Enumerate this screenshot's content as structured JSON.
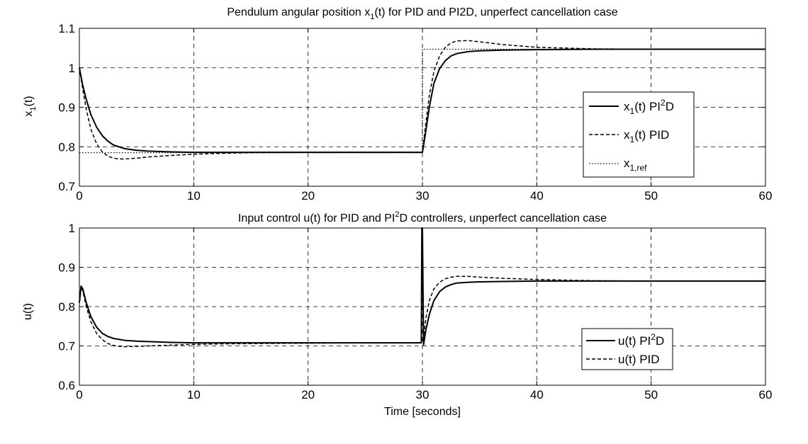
{
  "chart_data": [
    {
      "type": "line",
      "title": "Pendulum angular position x_1(t) for PID and PI2D, unperfect cancellation case",
      "title_parts": {
        "pre": "Pendulum angular position x",
        "sub": "1",
        "post": "(t) for PID and PI2D, unperfect cancellation case"
      },
      "xlabel": "",
      "ylabel": "x_1(t)",
      "ylabel_parts": {
        "pre": "x",
        "sub": "1",
        "post": "(t)"
      },
      "xlim": [
        0,
        60
      ],
      "ylim": [
        0.7,
        1.1
      ],
      "xticks": [
        0,
        10,
        20,
        30,
        40,
        50,
        60
      ],
      "yticks": [
        0.7,
        0.8,
        0.9,
        1.0,
        1.1
      ],
      "ytick_labels": [
        "0.7",
        "0.8",
        "0.9",
        "1",
        "1.1"
      ],
      "grid": true,
      "legend_position": "right",
      "series": [
        {
          "name": "x_1(t) PI^2D",
          "legend_parts": {
            "pre": "x",
            "sub": "1",
            "mid": "(t) PI",
            "sup": "2",
            "post": "D"
          },
          "style": "solid",
          "x": [
            0,
            0.3,
            0.6,
            1,
            1.5,
            2,
            2.5,
            3,
            4,
            5,
            6,
            8,
            10,
            15,
            20,
            25,
            29.9,
            30,
            30.3,
            30.6,
            31,
            31.5,
            32,
            32.5,
            33,
            34,
            35,
            37,
            40,
            45,
            50,
            55,
            60
          ],
          "y": [
            1.0,
            0.955,
            0.92,
            0.882,
            0.85,
            0.828,
            0.814,
            0.804,
            0.795,
            0.791,
            0.789,
            0.787,
            0.786,
            0.786,
            0.786,
            0.786,
            0.786,
            0.786,
            0.84,
            0.9,
            0.96,
            0.998,
            1.018,
            1.03,
            1.036,
            1.041,
            1.043,
            1.045,
            1.046,
            1.047,
            1.047,
            1.047,
            1.047
          ]
        },
        {
          "name": "x_1(t) PID",
          "legend_parts": {
            "pre": "x",
            "sub": "1",
            "mid": "(t) PID",
            "sup": "",
            "post": ""
          },
          "style": "dashed",
          "x": [
            0,
            0.3,
            0.6,
            1,
            1.5,
            2,
            2.5,
            3,
            3.5,
            4,
            5,
            6,
            8,
            10,
            12,
            15,
            20,
            25,
            29.9,
            30,
            30.3,
            30.6,
            31,
            31.5,
            32,
            32.5,
            33,
            34,
            35,
            37,
            40,
            45,
            50,
            55,
            60
          ],
          "y": [
            1.0,
            0.945,
            0.895,
            0.845,
            0.808,
            0.787,
            0.776,
            0.771,
            0.769,
            0.769,
            0.771,
            0.774,
            0.778,
            0.781,
            0.783,
            0.785,
            0.786,
            0.786,
            0.786,
            0.786,
            0.86,
            0.93,
            0.99,
            1.03,
            1.052,
            1.063,
            1.068,
            1.069,
            1.066,
            1.059,
            1.052,
            1.048,
            1.047,
            1.047,
            1.047
          ]
        },
        {
          "name": "x_1,ref",
          "legend_parts": {
            "pre": "x",
            "sub": "1,ref",
            "mid": "",
            "sup": "",
            "post": ""
          },
          "style": "dotted",
          "x": [
            0,
            29.99,
            30,
            60
          ],
          "y": [
            0.785,
            0.785,
            1.047,
            1.047
          ]
        }
      ]
    },
    {
      "type": "line",
      "title": "Input control u(t) for PID and PI^2D controllers, unperfect cancellation case",
      "title_parts": {
        "pre": "Input control u(t) for PID and PI",
        "sup": "2",
        "post": "D controllers, unperfect cancellation case"
      },
      "xlabel": "Time [seconds]",
      "ylabel": "u(t)",
      "xlim": [
        0,
        60
      ],
      "ylim": [
        0.6,
        1.0
      ],
      "xticks": [
        0,
        10,
        20,
        30,
        40,
        50,
        60
      ],
      "yticks": [
        0.6,
        0.7,
        0.8,
        0.9,
        1.0
      ],
      "ytick_labels": [
        "0.6",
        "0.7",
        "0.8",
        "0.9",
        "1"
      ],
      "grid": true,
      "legend_position": "right",
      "series": [
        {
          "name": "u(t) PI^2D",
          "legend_parts": {
            "pre": "u(t) PI",
            "sup": "2",
            "post": "D"
          },
          "style": "solid",
          "x": [
            0,
            0.15,
            0.3,
            0.6,
            1,
            1.5,
            2,
            2.5,
            3,
            4,
            5,
            6,
            8,
            10,
            15,
            20,
            25,
            29.9,
            29.95,
            30,
            30.1,
            30.3,
            30.6,
            31,
            31.5,
            32,
            32.5,
            33,
            34,
            35,
            37,
            40,
            45,
            50,
            55,
            60
          ],
          "y": [
            0.81,
            0.852,
            0.845,
            0.81,
            0.775,
            0.748,
            0.732,
            0.724,
            0.719,
            0.714,
            0.712,
            0.711,
            0.709,
            0.708,
            0.708,
            0.708,
            0.708,
            0.708,
            1.0,
            1.0,
            0.703,
            0.74,
            0.78,
            0.815,
            0.838,
            0.85,
            0.856,
            0.86,
            0.862,
            0.863,
            0.864,
            0.865,
            0.865,
            0.865,
            0.865,
            0.865
          ]
        },
        {
          "name": "u(t) PID",
          "legend_parts": {
            "pre": "u(t) PID",
            "sup": "",
            "post": ""
          },
          "style": "dashed",
          "x": [
            0,
            0.15,
            0.3,
            0.6,
            1,
            1.5,
            2,
            2.5,
            3,
            3.5,
            4,
            5,
            6,
            8,
            10,
            12,
            15,
            20,
            25,
            29.9,
            30.1,
            30.3,
            30.6,
            31,
            31.5,
            32,
            32.5,
            33,
            34,
            35,
            37,
            40,
            45,
            50,
            55,
            60
          ],
          "y": [
            0.81,
            0.85,
            0.84,
            0.8,
            0.762,
            0.732,
            0.716,
            0.706,
            0.701,
            0.699,
            0.698,
            0.699,
            0.7,
            0.702,
            0.704,
            0.705,
            0.706,
            0.707,
            0.708,
            0.708,
            0.72,
            0.77,
            0.815,
            0.845,
            0.862,
            0.871,
            0.875,
            0.877,
            0.877,
            0.875,
            0.872,
            0.869,
            0.866,
            0.865,
            0.865,
            0.865
          ]
        }
      ]
    }
  ]
}
